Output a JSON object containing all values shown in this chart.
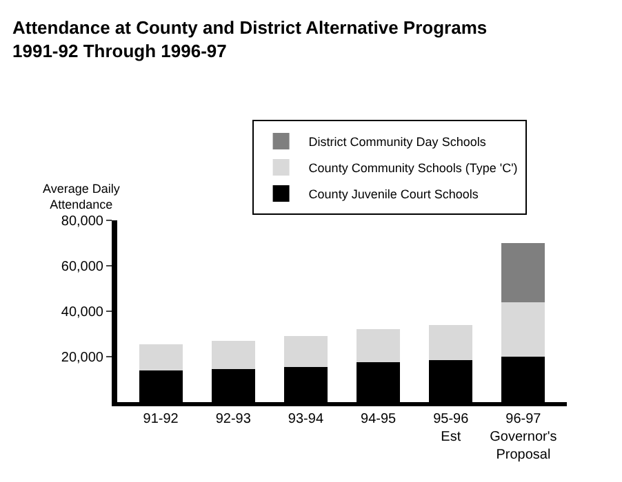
{
  "chart_data": {
    "type": "bar",
    "stacked": true,
    "title": "Attendance at County and District Alternative Programs\n1991-92 Through 1996-97",
    "ylabel": "Average Daily\nAttendance",
    "categories": [
      "91-92",
      "92-93",
      "93-94",
      "94-95",
      "95-96\nEst",
      "96-97\nGovernor's\nProposal"
    ],
    "series": [
      {
        "name": "County Juvenile Court Schools",
        "color": "#000000",
        "values": [
          14000,
          14500,
          15500,
          17500,
          18500,
          20000
        ]
      },
      {
        "name": "County Community Schools (Type 'C')",
        "color": "#d9d9d9",
        "values": [
          11500,
          12500,
          13500,
          14500,
          15500,
          24000
        ]
      },
      {
        "name": "District Community Day Schools",
        "color": "#7f7f7f",
        "values": [
          0,
          0,
          0,
          0,
          0,
          26000
        ]
      }
    ],
    "ylim": [
      0,
      80000
    ],
    "yticks": [
      {
        "value": 20000,
        "label": "20,000"
      },
      {
        "value": 40000,
        "label": "40,000"
      },
      {
        "value": 60000,
        "label": "60,000"
      },
      {
        "value": 80000,
        "label": "80,000"
      }
    ],
    "grid": false,
    "legend": "top"
  }
}
